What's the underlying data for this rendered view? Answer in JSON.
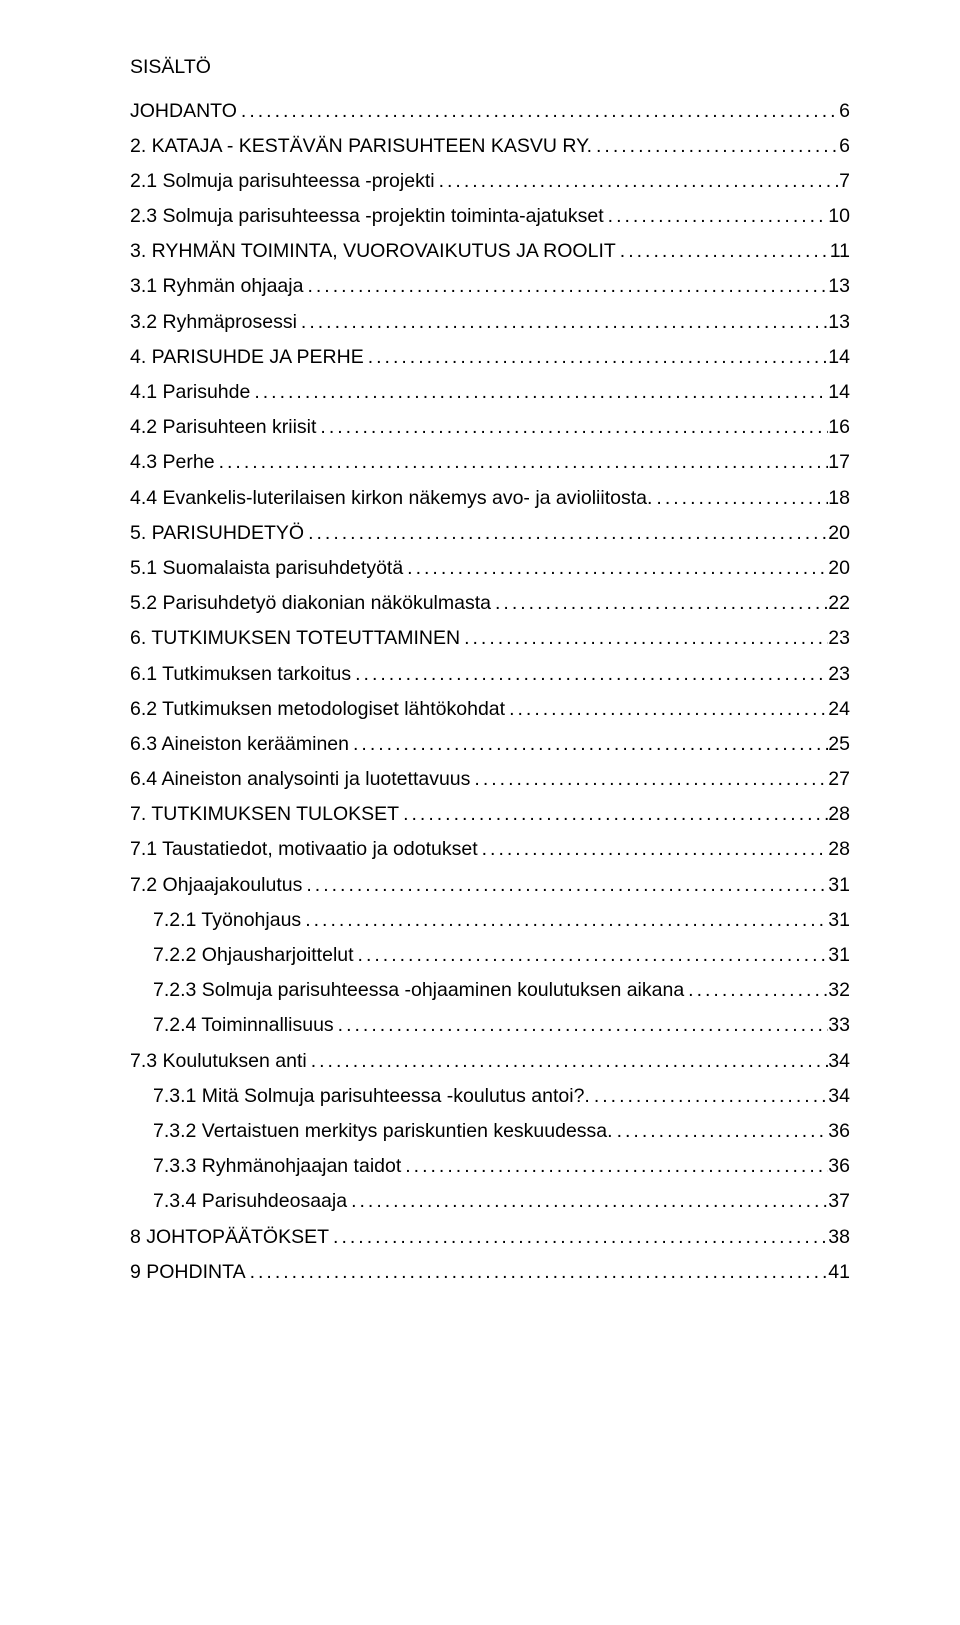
{
  "title": "SISÄLTÖ",
  "style": {
    "fontFamily": "Arial, Helvetica, sans-serif",
    "fontSizePt": 15,
    "textColor": "#000000",
    "backgroundColor": "#ffffff",
    "dotLeaderChar": ".",
    "dotLetterSpacingPx": 3,
    "indent1Px": 23
  },
  "toc": [
    {
      "label": "JOHDANTO",
      "page": "6",
      "indent": 0
    },
    {
      "label": "2. KATAJA - KESTÄVÄN PARISUHTEEN KASVU RY.",
      "page": "6",
      "indent": 0
    },
    {
      "label": "2.1 Solmuja parisuhteessa -projekti",
      "page": "7",
      "indent": 0
    },
    {
      "label": "2.3 Solmuja parisuhteessa -projektin toiminta-ajatukset",
      "page": "10",
      "indent": 0
    },
    {
      "label": "3. RYHMÄN TOIMINTA, VUOROVAIKUTUS JA ROOLIT",
      "page": "11",
      "indent": 0
    },
    {
      "label": "3.1 Ryhmän ohjaaja",
      "page": "13",
      "indent": 0
    },
    {
      "label": "3.2 Ryhmäprosessi",
      "page": "13",
      "indent": 0
    },
    {
      "label": "4. PARISUHDE JA PERHE",
      "page": "14",
      "indent": 0
    },
    {
      "label": "4.1 Parisuhde",
      "page": "14",
      "indent": 0
    },
    {
      "label": "4.2 Parisuhteen kriisit",
      "page": "16",
      "indent": 0
    },
    {
      "label": "4.3 Perhe",
      "page": "17",
      "indent": 0
    },
    {
      "label": "4.4 Evankelis-luterilaisen kirkon näkemys avo- ja avioliitosta.",
      "page": "18",
      "indent": 0
    },
    {
      "label": "5. PARISUHDETYÖ",
      "page": "20",
      "indent": 0
    },
    {
      "label": "5.1 Suomalaista parisuhdetyötä",
      "page": "20",
      "indent": 0
    },
    {
      "label": "5.2 Parisuhdetyö diakonian näkökulmasta",
      "page": "22",
      "indent": 0
    },
    {
      "label": "6. TUTKIMUKSEN TOTEUTTAMINEN",
      "page": "23",
      "indent": 0
    },
    {
      "label": "6.1 Tutkimuksen tarkoitus",
      "page": "23",
      "indent": 0
    },
    {
      "label": "6.2 Tutkimuksen metodologiset lähtökohdat",
      "page": "24",
      "indent": 0
    },
    {
      "label": "6.3 Aineiston kerääminen",
      "page": "25",
      "indent": 0
    },
    {
      "label": "6.4 Aineiston analysointi ja luotettavuus",
      "page": "27",
      "indent": 0
    },
    {
      "label": "7. TUTKIMUKSEN TULOKSET",
      "page": "28",
      "indent": 0
    },
    {
      "label": "7.1 Taustatiedot, motivaatio ja odotukset",
      "page": "28",
      "indent": 0
    },
    {
      "label": "7.2 Ohjaajakoulutus",
      "page": "31",
      "indent": 0
    },
    {
      "label": "7.2.1 Työnohjaus",
      "page": "31",
      "indent": 1
    },
    {
      "label": "7.2.2 Ohjausharjoittelut",
      "page": "31",
      "indent": 1
    },
    {
      "label": "7.2.3 Solmuja parisuhteessa -ohjaaminen koulutuksen aikana",
      "page": "32",
      "indent": 1
    },
    {
      "label": "7.2.4 Toiminnallisuus",
      "page": "33",
      "indent": 1
    },
    {
      "label": "7.3 Koulutuksen anti",
      "page": "34",
      "indent": 0
    },
    {
      "label": "7.3.1 Mitä Solmuja parisuhteessa -koulutus antoi?.",
      "page": "34",
      "indent": 1
    },
    {
      "label": "7.3.2 Vertaistuen merkitys pariskuntien keskuudessa.",
      "page": "36",
      "indent": 1
    },
    {
      "label": "7.3.3 Ryhmänohjaajan taidot",
      "page": "36",
      "indent": 1
    },
    {
      "label": "7.3.4 Parisuhdeosaaja",
      "page": "37",
      "indent": 1
    },
    {
      "label": "8 JOHTOPÄÄTÖKSET",
      "page": "38",
      "indent": 0
    },
    {
      "label": "9 POHDINTA",
      "page": "41",
      "indent": 0
    }
  ]
}
